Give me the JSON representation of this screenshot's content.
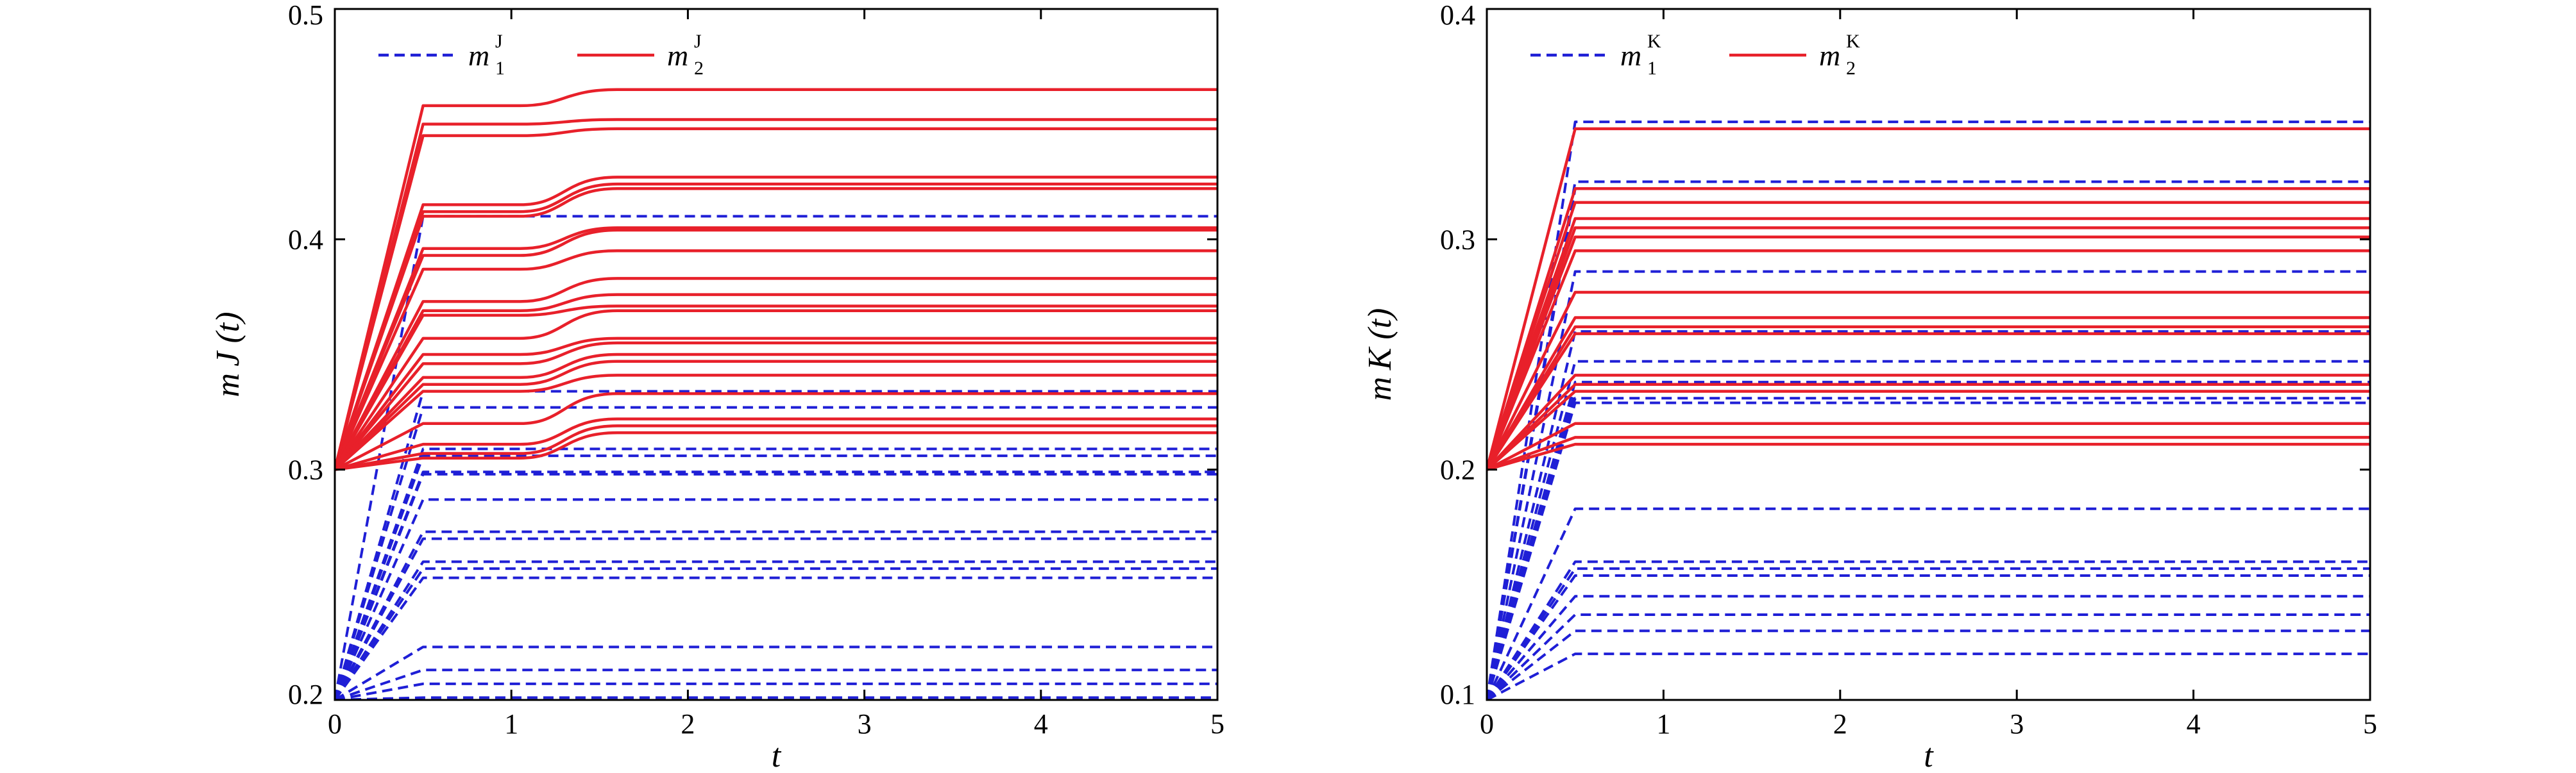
{
  "chart_data": [
    {
      "type": "line",
      "xlabel": "t",
      "ylabel": "m J (t)",
      "xlim": [
        0,
        5
      ],
      "ylim": [
        0.2,
        0.5
      ],
      "xticks": [
        "0",
        "1",
        "2",
        "3",
        "4",
        "5"
      ],
      "yticks": [
        "0.2",
        "0.3",
        "0.4",
        "0.5"
      ],
      "legend_position": "top-left",
      "legend": [
        {
          "name": "m",
          "sup": "J",
          "sub": "1",
          "style": "dashed",
          "color": "#1f1fd6"
        },
        {
          "name": "m",
          "sup": "J",
          "sub": "2",
          "style": "solid",
          "color": "#e8202a"
        }
      ],
      "series": [
        {
          "name": "m1",
          "color": "#1f1fd6",
          "style": "dashed",
          "start": 0.2,
          "ramp_end": 0.5,
          "finals": [
            0.41,
            0.334,
            0.327,
            0.309,
            0.306,
            0.299,
            0.298,
            0.287,
            0.273,
            0.27,
            0.26,
            0.257,
            0.253,
            0.223,
            0.213,
            0.207,
            0.201
          ]
        },
        {
          "name": "m2",
          "color": "#e8202a",
          "style": "solid",
          "start": 0.3,
          "ramp_end": 0.5,
          "curves": [
            {
              "p": 0.458,
              "f": 0.465
            },
            {
              "p": 0.45,
              "f": 0.452
            },
            {
              "p": 0.445,
              "f": 0.448
            },
            {
              "p": 0.415,
              "f": 0.427
            },
            {
              "p": 0.412,
              "f": 0.424
            },
            {
              "p": 0.41,
              "f": 0.422
            },
            {
              "p": 0.396,
              "f": 0.405
            },
            {
              "p": 0.393,
              "f": 0.404
            },
            {
              "p": 0.387,
              "f": 0.395
            },
            {
              "p": 0.373,
              "f": 0.383
            },
            {
              "p": 0.369,
              "f": 0.376
            },
            {
              "p": 0.367,
              "f": 0.371
            },
            {
              "p": 0.357,
              "f": 0.369
            },
            {
              "p": 0.35,
              "f": 0.357
            },
            {
              "p": 0.346,
              "f": 0.355
            },
            {
              "p": 0.34,
              "f": 0.35
            },
            {
              "p": 0.337,
              "f": 0.347
            },
            {
              "p": 0.334,
              "f": 0.341
            },
            {
              "p": 0.32,
              "f": 0.333
            },
            {
              "p": 0.311,
              "f": 0.322
            },
            {
              "p": 0.307,
              "f": 0.319
            },
            {
              "p": 0.305,
              "f": 0.316
            }
          ]
        }
      ]
    },
    {
      "type": "line",
      "xlabel": "t",
      "ylabel": "m K (t)",
      "xlim": [
        0,
        5
      ],
      "ylim": [
        0.1,
        0.4
      ],
      "xticks": [
        "0",
        "1",
        "2",
        "3",
        "4",
        "5"
      ],
      "yticks": [
        "0.1",
        "0.2",
        "0.3",
        "0.4"
      ],
      "legend_position": "top-left",
      "legend": [
        {
          "name": "m",
          "sup": "K",
          "sub": "1",
          "style": "dashed",
          "color": "#1f1fd6"
        },
        {
          "name": "m",
          "sup": "K",
          "sub": "2",
          "style": "solid",
          "color": "#e8202a"
        }
      ],
      "series": [
        {
          "name": "m1",
          "color": "#1f1fd6",
          "style": "dashed",
          "start": 0.1,
          "ramp_end": 0.5,
          "finals": [
            0.351,
            0.325,
            0.322,
            0.286,
            0.26,
            0.247,
            0.238,
            0.234,
            0.231,
            0.229,
            0.183,
            0.16,
            0.157,
            0.154,
            0.145,
            0.137,
            0.13,
            0.12
          ]
        },
        {
          "name": "m2",
          "color": "#e8202a",
          "style": "solid",
          "start": 0.2,
          "ramp_end": 0.5,
          "finals": [
            0.348,
            0.322,
            0.316,
            0.309,
            0.305,
            0.301,
            0.295,
            0.277,
            0.266,
            0.262,
            0.259,
            0.241,
            0.237,
            0.234,
            0.22,
            0.214,
            0.211
          ]
        }
      ]
    }
  ]
}
